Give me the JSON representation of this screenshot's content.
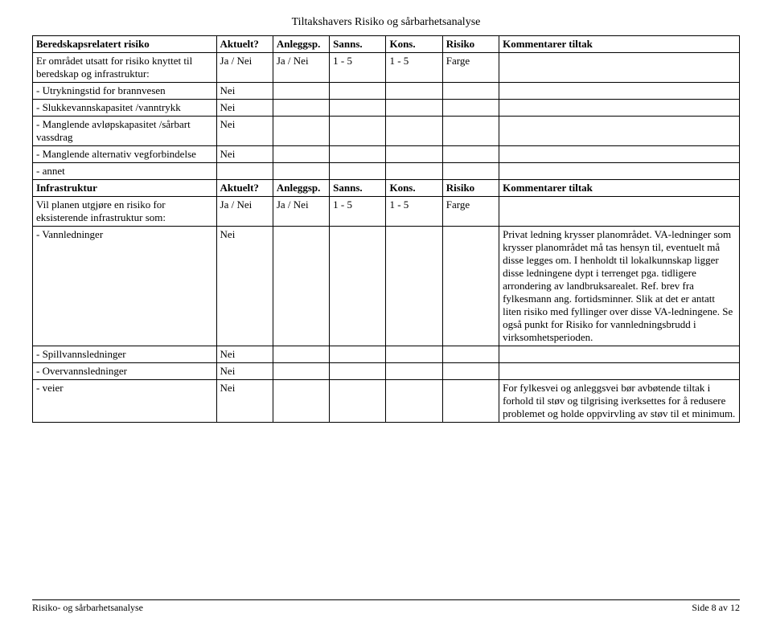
{
  "page": {
    "title": "Tiltakshavers Risiko og sårbarhetsanalyse",
    "footer_left": "Risiko- og sårbarhetsanalyse",
    "footer_right": "Side 8 av 12"
  },
  "headers": {
    "aktuelt": "Aktuelt?",
    "anleggsp": "Anleggsp.",
    "sanns": "Sanns.",
    "kons": "Kons.",
    "risiko": "Risiko",
    "kommentarer": "Kommentarer tiltak"
  },
  "section1": {
    "title": "Beredskapsrelatert risiko",
    "row0": {
      "label": "Er området utsatt for risiko knyttet til beredskap og infrastruktur:",
      "aktuelt": "Ja / Nei",
      "anleggsp": "Ja / Nei",
      "sanns": "1  - 5",
      "kons": "1  - 5",
      "risiko": "Farge"
    },
    "row1": {
      "label": "- Utrykningstid for brannvesen",
      "aktuelt": "Nei"
    },
    "row2": {
      "label": "- Slukkevannskapasitet /vanntrykk",
      "aktuelt": "Nei"
    },
    "row3": {
      "label": "- Manglende avløpskapasitet /sårbart vassdrag",
      "aktuelt": "Nei"
    },
    "row4": {
      "label": "- Manglende alternativ vegforbindelse",
      "aktuelt": "Nei"
    },
    "row5": {
      "label": "- annet"
    }
  },
  "section2": {
    "title": "Infrastruktur",
    "row0": {
      "label": "Vil planen utgjøre en risiko for eksisterende infrastruktur som:",
      "aktuelt": "Ja / Nei",
      "anleggsp": "Ja / Nei",
      "sanns": "1  - 5",
      "kons": "1  - 5",
      "risiko": "Farge"
    },
    "row1": {
      "label": "- Vannledninger",
      "aktuelt": "Nei",
      "kommentar": "Privat ledning krysser planområdet. VA-ledninger som krysser planområdet må tas hensyn til, eventuelt må disse legges om. I henholdt til lokalkunnskap ligger disse ledningene dypt i terrenget pga. tidligere arrondering av landbruksarealet. Ref. brev fra fylkesmann ang. fortidsminner. Slik at det er antatt liten risiko med fyllinger over disse VA-ledningene. Se også punkt for Risiko for vannledningsbrudd i virksomhetsperioden."
    },
    "row2": {
      "label": "- Spillvannsledninger",
      "aktuelt": "Nei"
    },
    "row3": {
      "label": "- Overvannsledninger",
      "aktuelt": "Nei"
    },
    "row4": {
      "label": "- veier",
      "aktuelt": "Nei",
      "kommentar": "For fylkesvei og anleggsvei bør avbøtende tiltak i forhold til støv og tilgrising iverksettes for å redusere problemet og holde oppvirvling av støv til et minimum."
    }
  }
}
